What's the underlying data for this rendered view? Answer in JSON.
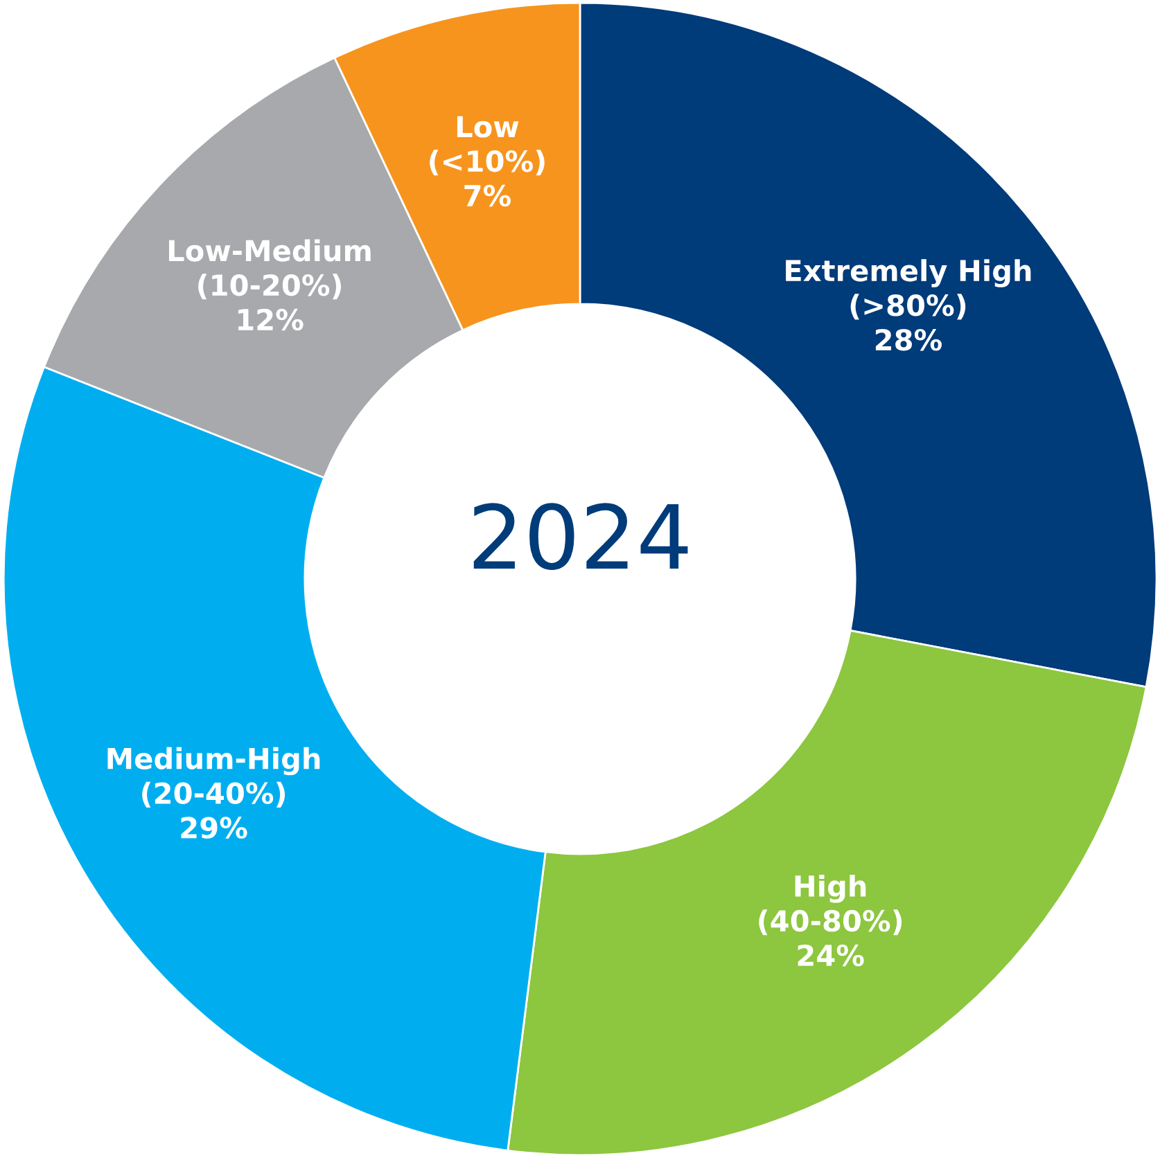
{
  "chart_data": {
    "type": "donut",
    "title": "2024",
    "categories": [
      "Extremely High\n(>80%)",
      "High\n(40-80%)",
      "Medium-High\n(20-40%)",
      "Low-Medium\n(10-20%)",
      "Low\n(<10%)"
    ],
    "values": [
      28,
      24,
      29,
      12,
      7
    ],
    "value_labels": [
      "28%",
      "24%",
      "29%",
      "12%",
      "7%"
    ],
    "colors": [
      "#003b7a",
      "#8dc63f",
      "#00aeef",
      "#a7a9ac",
      "#f7941d"
    ],
    "legend": false
  }
}
